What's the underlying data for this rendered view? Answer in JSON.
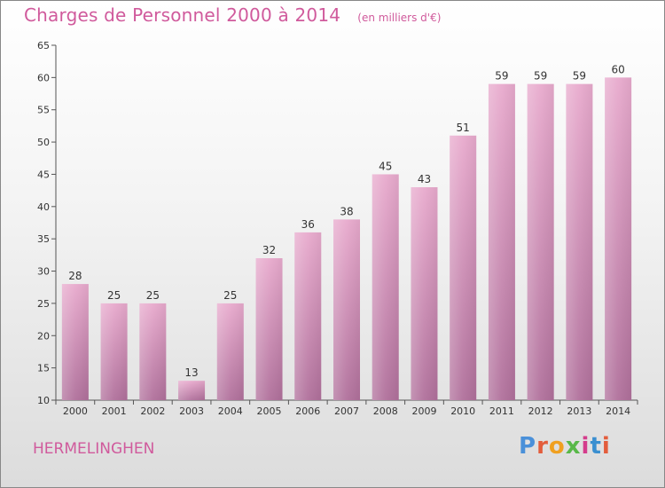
{
  "chart_data": {
    "type": "bar",
    "title": "Charges de Personnel 2000 à 2014",
    "subtitle": "(en milliers d'€)",
    "categories": [
      "2000",
      "2001",
      "2002",
      "2003",
      "2004",
      "2005",
      "2006",
      "2007",
      "2008",
      "2009",
      "2010",
      "2011",
      "2012",
      "2013",
      "2014"
    ],
    "values": [
      28,
      25,
      25,
      13,
      25,
      32,
      36,
      38,
      45,
      43,
      51,
      59,
      59,
      59,
      60
    ],
    "ylim": [
      10,
      65
    ],
    "yticks": [
      10,
      15,
      20,
      25,
      30,
      35,
      40,
      45,
      50,
      55,
      60,
      65
    ],
    "grid": false,
    "xlabel": "",
    "ylabel": ""
  },
  "footer": {
    "commune": "HERMELINGHEN",
    "logo_text": "Proxiti"
  },
  "colors": {
    "bar_top": "#e8aacd",
    "bar_bottom": "#b0709b",
    "title": "#d05a9c",
    "logo": [
      "#4a90d9",
      "#e35d3c",
      "#f0a020",
      "#58b848",
      "#d43c8c",
      "#3a8fd0",
      "#e35d3c"
    ]
  }
}
